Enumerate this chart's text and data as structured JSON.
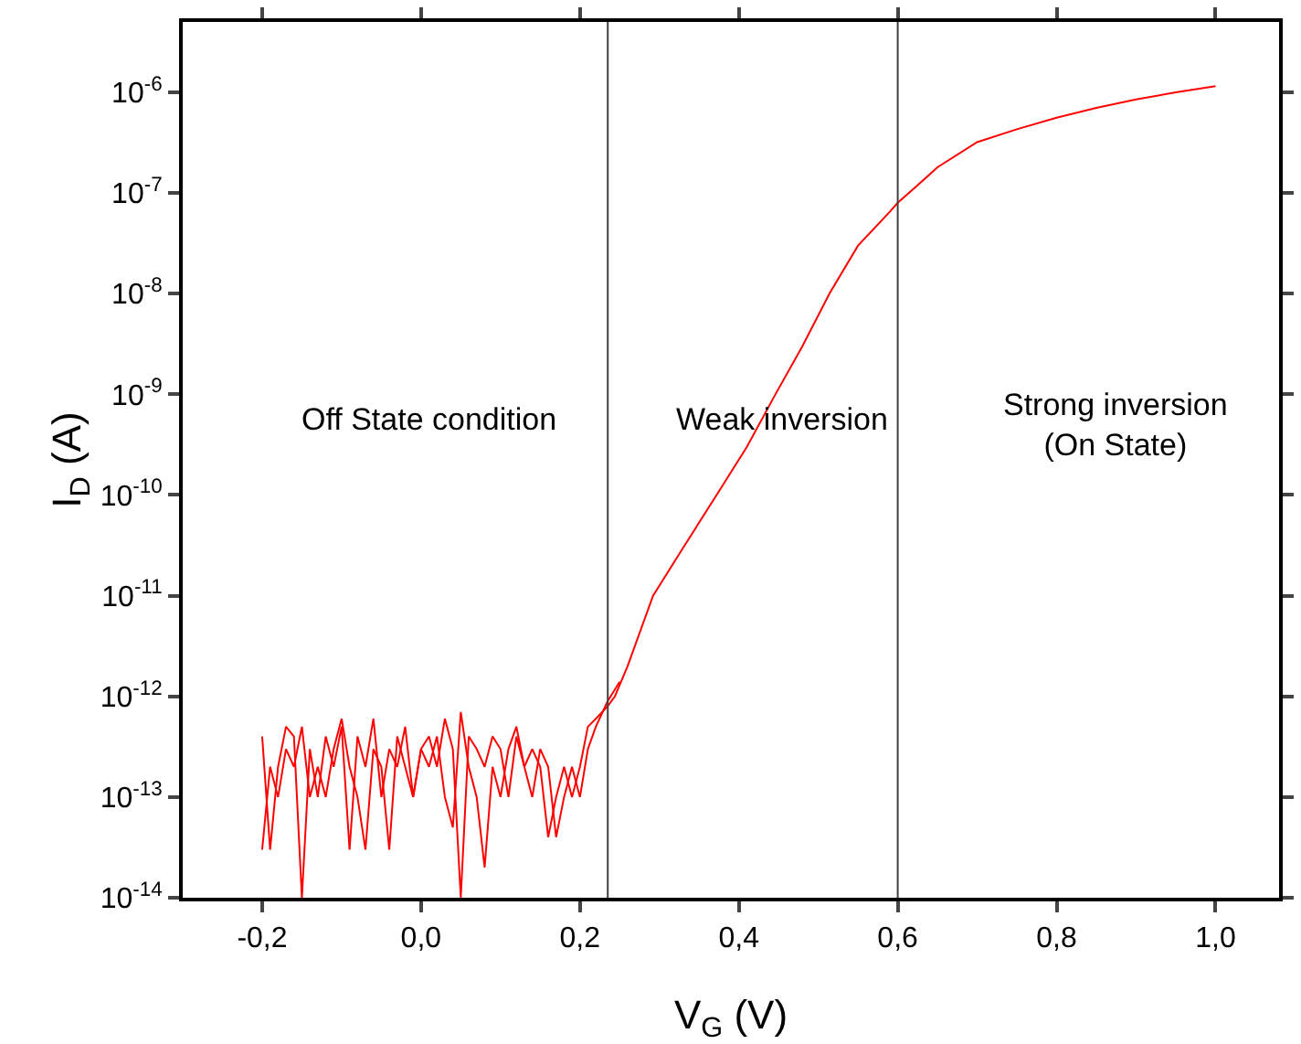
{
  "chart_data": {
    "type": "line",
    "xlabel": "V$_{G}$ (V)",
    "ylabel": "I$_{D}$ (A)",
    "log": "y",
    "xlim": [
      -0.3,
      1.08
    ],
    "xticks": [
      {
        "value": -0.2,
        "label": "-0,2"
      },
      {
        "value": 0,
        "label": "0,0"
      },
      {
        "value": 0.2,
        "label": "0,2"
      },
      {
        "value": 0.4,
        "label": "0,4"
      },
      {
        "value": 0.6,
        "label": "0,6"
      },
      {
        "value": 0.8,
        "label": "0,8"
      },
      {
        "value": 1,
        "label": "1,0"
      }
    ],
    "ylim": [
      1e-14,
      5e-06
    ],
    "yticks": [
      {
        "value": 1e-14,
        "label": "10$^{-14}$"
      },
      {
        "value": 1e-13,
        "label": "10$^{-13}$"
      },
      {
        "value": 1e-12,
        "label": "10$^{-12}$"
      },
      {
        "value": 1e-11,
        "label": "10$^{-11}$"
      },
      {
        "value": 1e-10,
        "label": "10$^{-10}$"
      },
      {
        "value": 1e-09,
        "label": "10$^{-9}$"
      },
      {
        "value": 1e-08,
        "label": "10$^{-8}$"
      },
      {
        "value": 1e-07,
        "label": "10$^{-7}$"
      },
      {
        "value": 1e-06,
        "label": "10$^{-6}$"
      }
    ],
    "grid": false,
    "marker": "none",
    "line_style": "solid",
    "series": [
      {
        "color": "#ff0000",
        "x": [
          -0.2,
          -0.19,
          -0.18,
          -0.17,
          -0.16,
          -0.15,
          -0.14,
          -0.13,
          -0.12,
          -0.11,
          -0.1,
          -0.09,
          -0.08,
          -0.07,
          -0.06,
          -0.05,
          -0.04,
          -0.03,
          -0.02,
          -0.01,
          0,
          0.01,
          0.02,
          0.03,
          0.04,
          0.05,
          0.06,
          0.07,
          0.08,
          0.09,
          0.1,
          0.11,
          0.12,
          0.13,
          0.14,
          0.15,
          0.16,
          0.17,
          0.18,
          0.19,
          0.2,
          0.21,
          0.22,
          0.235,
          0.244,
          0.26,
          0.292,
          0.33,
          0.372,
          0.41,
          0.446,
          0.48,
          0.514,
          0.55,
          0.59,
          0.6,
          0.62,
          0.65,
          0.7,
          0.75,
          0.8,
          0.85,
          0.9,
          0.95,
          1.0
        ],
        "values": [
          4e-13,
          3e-14,
          2e-13,
          5e-13,
          4e-13,
          1e-14,
          3e-13,
          1e-13,
          4e-13,
          2e-13,
          5e-13,
          3e-14,
          4e-13,
          2e-13,
          6e-13,
          1e-13,
          3e-13,
          2e-13,
          5e-13,
          1e-13,
          3e-13,
          4e-13,
          2e-13,
          6e-13,
          3e-13,
          1e-14,
          4e-13,
          3e-13,
          2e-13,
          4e-13,
          3e-13,
          1e-13,
          4e-13,
          2e-13,
          3e-13,
          2e-13,
          4e-14,
          1e-13,
          2e-13,
          1e-13,
          2e-13,
          5e-13,
          6e-13,
          8e-13,
          1e-12,
          2e-12,
          1e-11,
          3e-11,
          1e-10,
          3e-10,
          1e-09,
          3e-09,
          1e-08,
          3e-08,
          6.5e-08,
          8e-08,
          1.1e-07,
          1.8e-07,
          3.2e-07,
          4.3e-07,
          5.6e-07,
          7e-07,
          8.5e-07,
          1e-06,
          1.15e-06
        ]
      },
      {
        "color": "#ff0000",
        "x": [
          -0.2,
          -0.19,
          -0.18,
          -0.17,
          -0.16,
          -0.15,
          -0.14,
          -0.13,
          -0.12,
          -0.11,
          -0.1,
          -0.09,
          -0.08,
          -0.07,
          -0.06,
          -0.05,
          -0.04,
          -0.03,
          -0.02,
          -0.01,
          0,
          0.01,
          0.02,
          0.03,
          0.04,
          0.05,
          0.06,
          0.07,
          0.08,
          0.09,
          0.1,
          0.11,
          0.12,
          0.13,
          0.14,
          0.15,
          0.16,
          0.17,
          0.18,
          0.19,
          0.2,
          0.21,
          0.22,
          0.235,
          0.25
        ],
        "values": [
          3e-14,
          2e-13,
          1e-13,
          3e-13,
          2e-13,
          5e-13,
          1e-13,
          2e-13,
          1e-13,
          3e-13,
          6e-13,
          2e-13,
          1e-13,
          3e-14,
          3e-13,
          2e-13,
          3e-14,
          4e-13,
          2e-13,
          1e-13,
          3e-13,
          2e-13,
          4e-13,
          1e-13,
          5e-14,
          7e-13,
          2e-13,
          1e-13,
          2e-14,
          2e-13,
          1e-13,
          3e-13,
          5e-13,
          2e-13,
          1e-13,
          3e-13,
          2e-13,
          4e-14,
          1e-13,
          2e-13,
          1e-13,
          3e-13,
          5e-13,
          9e-13,
          1.4e-12
        ]
      }
    ],
    "ref_lines": [
      {
        "axis": "x",
        "value": 0.235,
        "color": "#404040"
      },
      {
        "axis": "x",
        "value": 0.6,
        "color": "#404040"
      }
    ],
    "annotations": [
      "Off State condition",
      "Weak inversion",
      "Strong inversion\n(On State)"
    ]
  }
}
